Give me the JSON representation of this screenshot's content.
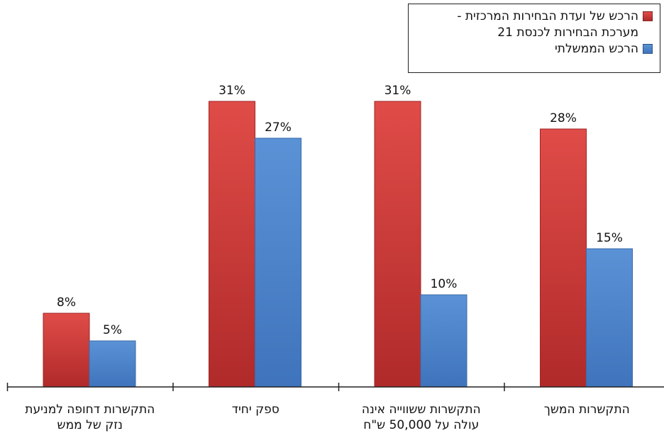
{
  "colors": {
    "red": "#d53a39",
    "blue": "#4f86cc",
    "axis": "#222222"
  },
  "chart_data": {
    "type": "bar",
    "categories": [
      "התקשרות דחופה למניעת\nנזק של ממש",
      "ספק יחיד",
      "התקשרות ששווייה אינה\nעולה על 50,000 ש\"ח",
      "התקשרות המשך"
    ],
    "series": [
      {
        "name": "הרכש של ועדת הבחירות המרכזית -\nמערכת הבחירות לכנסת 21",
        "values": [
          8,
          31,
          31,
          28
        ],
        "labels": [
          "8%",
          "31%",
          "31%",
          "28%"
        ],
        "color": "#d53a39"
      },
      {
        "name": "הרכש הממשלתי",
        "values": [
          5,
          27,
          10,
          15
        ],
        "labels": [
          "5%",
          "27%",
          "10%",
          "15%"
        ],
        "color": "#4f86cc"
      }
    ],
    "ylim": [
      0,
      35
    ],
    "legend": "top-right",
    "grid": false,
    "data_labels": true
  }
}
